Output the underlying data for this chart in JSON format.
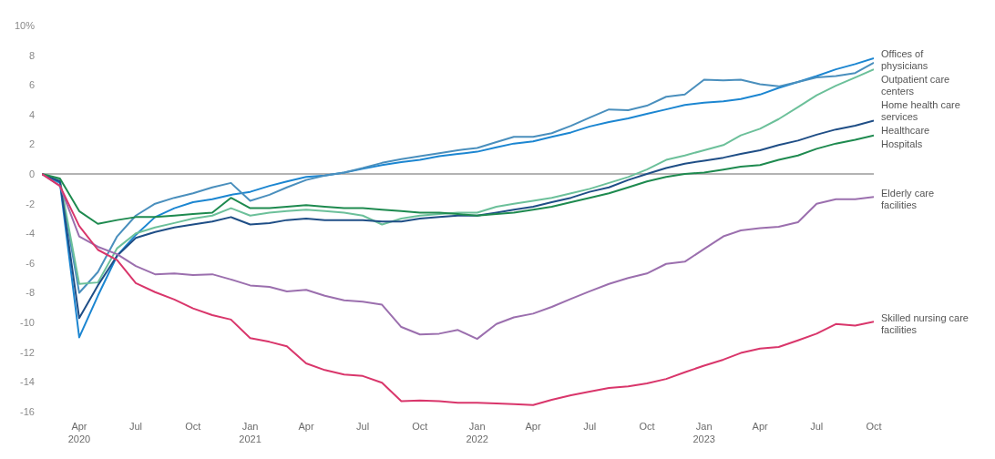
{
  "chart_data": {
    "type": "line",
    "x": [
      "2020-02",
      "2020-03",
      "2020-04",
      "2020-05",
      "2020-06",
      "2020-07",
      "2020-08",
      "2020-09",
      "2020-10",
      "2020-11",
      "2020-12",
      "2021-01",
      "2021-02",
      "2021-03",
      "2021-04",
      "2021-05",
      "2021-06",
      "2021-07",
      "2021-08",
      "2021-09",
      "2021-10",
      "2021-11",
      "2021-12",
      "2022-01",
      "2022-02",
      "2022-03",
      "2022-04",
      "2022-05",
      "2022-06",
      "2022-07",
      "2022-08",
      "2022-09",
      "2022-10",
      "2022-11",
      "2022-12",
      "2023-01",
      "2023-02",
      "2023-03",
      "2023-04",
      "2023-05",
      "2023-06",
      "2023-07",
      "2023-08",
      "2023-09",
      "2023-10"
    ],
    "series": [
      {
        "name": "Offices of physicians",
        "color": "#1c86d1",
        "values": [
          0,
          -0.6,
          -11,
          -8.2,
          -5.5,
          -4.1,
          -2.9,
          -2.3,
          -1.9,
          -1.7,
          -1.4,
          -1.2,
          -0.8,
          -0.5,
          -0.2,
          -0.1,
          0.1,
          0.35,
          0.6,
          0.8,
          0.95,
          1.2,
          1.35,
          1.5,
          1.8,
          2.05,
          2.2,
          2.5,
          2.8,
          3.2,
          3.5,
          3.75,
          4.05,
          4.35,
          4.65,
          4.8,
          4.9,
          5.05,
          5.35,
          5.8,
          6.2,
          6.6,
          7.05,
          7.4,
          7.8
        ]
      },
      {
        "name": "Outpatient care centers",
        "color": "#4a8fbd",
        "values": [
          0,
          -0.5,
          -8,
          -6.6,
          -4.2,
          -2.8,
          -2,
          -1.6,
          -1.3,
          -0.9,
          -0.6,
          -1.8,
          -1.4,
          -0.9,
          -0.4,
          -0.1,
          0.1,
          0.4,
          0.75,
          1,
          1.2,
          1.4,
          1.6,
          1.75,
          2.15,
          2.5,
          2.5,
          2.75,
          3.25,
          3.8,
          4.35,
          4.3,
          4.6,
          5.2,
          5.35,
          6.35,
          6.3,
          6.35,
          6.05,
          5.9,
          6.2,
          6.5,
          6.6,
          6.8,
          7.5
        ]
      },
      {
        "name": "Home health care services",
        "color": "#6cc09a",
        "values": [
          0,
          -0.4,
          -7.4,
          -7.3,
          -5,
          -4,
          -3.6,
          -3.3,
          -3,
          -2.8,
          -2.3,
          -2.8,
          -2.6,
          -2.5,
          -2.4,
          -2.5,
          -2.6,
          -2.8,
          -3.4,
          -3,
          -2.8,
          -2.7,
          -2.6,
          -2.6,
          -2.2,
          -2,
          -1.8,
          -1.6,
          -1.3,
          -1,
          -0.6,
          -0.2,
          0.3,
          0.95,
          1.25,
          1.6,
          1.95,
          2.6,
          3.05,
          3.7,
          4.5,
          5.3,
          5.95,
          6.5,
          7.05
        ]
      },
      {
        "name": "Healthcare",
        "color": "#1f4e86",
        "values": [
          0,
          -0.5,
          -9.7,
          -7.5,
          -5.5,
          -4.3,
          -3.9,
          -3.6,
          -3.4,
          -3.2,
          -2.9,
          -3.4,
          -3.3,
          -3.1,
          -3,
          -3.1,
          -3.1,
          -3.1,
          -3.2,
          -3.2,
          -3,
          -2.9,
          -2.8,
          -2.8,
          -2.6,
          -2.4,
          -2.2,
          -1.9,
          -1.6,
          -1.2,
          -0.9,
          -0.4,
          0,
          0.4,
          0.7,
          0.9,
          1.1,
          1.35,
          1.6,
          1.95,
          2.25,
          2.65,
          3,
          3.25,
          3.6
        ]
      },
      {
        "name": "Hospitals",
        "color": "#1e8a4f",
        "values": [
          0,
          -0.3,
          -2.5,
          -3.35,
          -3.1,
          -2.9,
          -2.9,
          -2.8,
          -2.7,
          -2.6,
          -1.6,
          -2.3,
          -2.3,
          -2.2,
          -2.1,
          -2.2,
          -2.3,
          -2.3,
          -2.4,
          -2.5,
          -2.6,
          -2.6,
          -2.7,
          -2.8,
          -2.7,
          -2.6,
          -2.4,
          -2.2,
          -1.9,
          -1.6,
          -1.3,
          -0.9,
          -0.5,
          -0.2,
          0,
          0.1,
          0.3,
          0.5,
          0.6,
          0.95,
          1.25,
          1.7,
          2.05,
          2.3,
          2.6
        ]
      },
      {
        "name": "Elderly care facilities",
        "color": "#9b6fae",
        "values": [
          0,
          -0.8,
          -4.2,
          -4.9,
          -5.4,
          -6.2,
          -6.75,
          -6.7,
          -6.8,
          -6.75,
          -7.1,
          -7.5,
          -7.6,
          -7.9,
          -7.8,
          -8.2,
          -8.5,
          -8.6,
          -8.8,
          -10.3,
          -10.8,
          -10.75,
          -10.5,
          -11.1,
          -10.1,
          -9.65,
          -9.4,
          -8.95,
          -8.4,
          -7.9,
          -7.4,
          -7,
          -6.7,
          -6.05,
          -5.9,
          -5.05,
          -4.2,
          -3.8,
          -3.65,
          -3.55,
          -3.25,
          -2,
          -1.7,
          -1.7,
          -1.55
        ]
      },
      {
        "name": "Skilled nursing care facilities",
        "color": "#d9366b",
        "values": [
          0,
          -0.8,
          -3.5,
          -5.1,
          -5.8,
          -7.35,
          -7.95,
          -8.45,
          -9.05,
          -9.5,
          -9.8,
          -11.05,
          -11.3,
          -11.6,
          -12.75,
          -13.2,
          -13.5,
          -13.6,
          -14.05,
          -15.3,
          -15.25,
          -15.3,
          -15.4,
          -15.4,
          -15.45,
          -15.5,
          -15.55,
          -15.2,
          -14.9,
          -14.65,
          -14.4,
          -14.3,
          -14.1,
          -13.8,
          -13.35,
          -12.9,
          -12.5,
          -12.05,
          -11.75,
          -11.65,
          -11.2,
          -10.75,
          -10.1,
          -10.2,
          -9.95
        ]
      }
    ],
    "xlim": [
      "2020-02",
      "2023-10"
    ],
    "xticks": [
      {
        "value": "2020-04",
        "label": "Apr\n2020"
      },
      {
        "value": "2020-07",
        "label": "Jul"
      },
      {
        "value": "2020-10",
        "label": "Oct"
      },
      {
        "value": "2021-01",
        "label": "Jan\n2021"
      },
      {
        "value": "2021-04",
        "label": "Apr"
      },
      {
        "value": "2021-07",
        "label": "Jul"
      },
      {
        "value": "2021-10",
        "label": "Oct"
      },
      {
        "value": "2022-01",
        "label": "Jan\n2022"
      },
      {
        "value": "2022-04",
        "label": "Apr"
      },
      {
        "value": "2022-07",
        "label": "Jul"
      },
      {
        "value": "2022-10",
        "label": "Oct"
      },
      {
        "value": "2023-01",
        "label": "Jan\n2023"
      },
      {
        "value": "2023-04",
        "label": "Apr"
      },
      {
        "value": "2023-07",
        "label": "Jul"
      },
      {
        "value": "2023-10",
        "label": "Oct"
      }
    ],
    "ylim": [
      -16,
      10
    ],
    "yticks": [
      {
        "value": 10,
        "label": "10%"
      },
      8,
      6,
      4,
      2,
      0,
      -2,
      -4,
      -6,
      -8,
      -10,
      -12,
      -14,
      -16
    ],
    "ref_lines": [
      {
        "axis": "y",
        "value": 0,
        "color": "#9a9a9a"
      }
    ],
    "grid": false,
    "legend": false,
    "marker": "none",
    "line_style": "solid"
  }
}
